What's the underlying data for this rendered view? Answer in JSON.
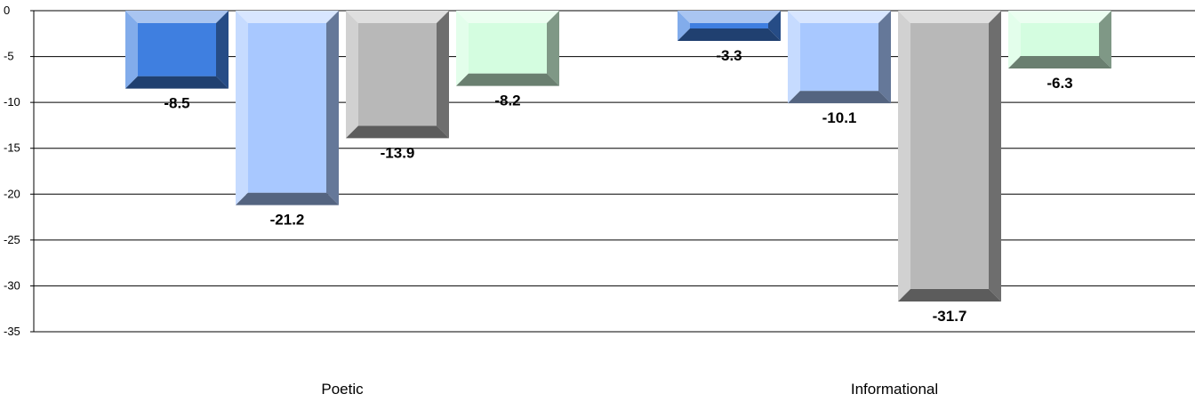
{
  "chart_data": {
    "type": "bar",
    "categories": [
      "Poetic",
      "Informational"
    ],
    "series": [
      {
        "values": [
          -8.5,
          -3.3
        ],
        "color": "#3f7fe0"
      },
      {
        "values": [
          -21.2,
          -10.1
        ],
        "color": "#a8c8ff"
      },
      {
        "values": [
          -13.9,
          -31.7
        ],
        "color": "#b8b8b8"
      },
      {
        "values": [
          -8.2,
          -6.3
        ],
        "color": "#d4fde0"
      }
    ],
    "yticks": [
      0,
      -5,
      -10,
      -15,
      -20,
      -25,
      -30,
      -35
    ],
    "ylim": [
      -35,
      0
    ],
    "grid": true,
    "style": "3d-bevel"
  }
}
